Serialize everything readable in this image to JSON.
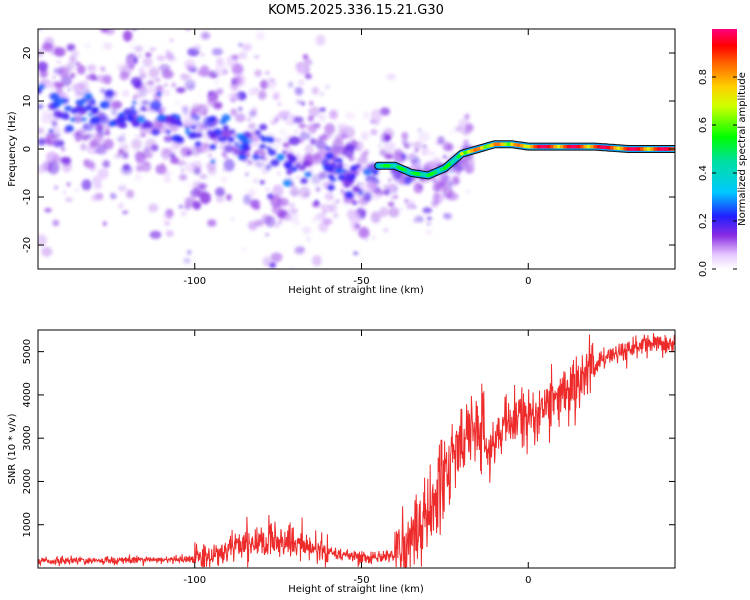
{
  "title": "KOM5.2025.336.15.21.G30",
  "chart_data": [
    {
      "type": "heatmap",
      "name": "spectrogram",
      "xlabel": "Height of straight line (km)",
      "ylabel": "Frequency (Hz)",
      "xlim": [
        -147,
        44
      ],
      "ylim": [
        -25,
        25
      ],
      "xticks": [
        -100,
        -50,
        0
      ],
      "yticks": [
        20,
        10,
        0,
        -10,
        -20
      ],
      "colorbar": {
        "label": "Normalized spectral amplitude",
        "range": [
          0,
          1
        ],
        "ticks": [
          0.0,
          0.2,
          0.4,
          0.6,
          0.8
        ],
        "tick_labels": [
          "0.0",
          "0.2",
          "0.4",
          "0.6",
          "0.8"
        ]
      },
      "ridge": [
        [
          -145,
          9
        ],
        [
          -130,
          8
        ],
        [
          -115,
          6
        ],
        [
          -100,
          5
        ],
        [
          -90,
          3
        ],
        [
          -80,
          0
        ],
        [
          -70,
          -3
        ],
        [
          -60,
          -5
        ],
        [
          -50,
          -6
        ],
        [
          -45,
          -3.5
        ],
        [
          -40,
          -3.5
        ],
        [
          -35,
          -5
        ],
        [
          -30,
          -5.5
        ],
        [
          -25,
          -4
        ],
        [
          -20,
          -1
        ],
        [
          -15,
          0
        ],
        [
          -10,
          1
        ],
        [
          -5,
          1
        ],
        [
          0,
          0.5
        ],
        [
          10,
          0.5
        ],
        [
          20,
          0.5
        ],
        [
          30,
          0
        ],
        [
          44,
          0
        ]
      ]
    },
    {
      "type": "line",
      "name": "snr",
      "xlabel": "Height of straight line (km)",
      "ylabel": "SNR (10 * v/v)",
      "xlim": [
        -147,
        44
      ],
      "ylim": [
        0,
        5500
      ],
      "xticks": [
        -100,
        -50,
        0
      ],
      "yticks": [
        1000,
        2000,
        3000,
        4000,
        5000
      ],
      "color": "#ee2b2b",
      "series": [
        {
          "name": "SNR",
          "x": [
            -147,
            -140,
            -130,
            -120,
            -110,
            -100,
            -95,
            -90,
            -85,
            -80,
            -75,
            -70,
            -65,
            -60,
            -55,
            -50,
            -45,
            -40,
            -38,
            -36,
            -34,
            -32,
            -30,
            -28,
            -26,
            -24,
            -22,
            -20,
            -18,
            -16,
            -14,
            -12,
            -10,
            -8,
            -6,
            -4,
            -2,
            0,
            2,
            4,
            6,
            8,
            10,
            12,
            14,
            16,
            18,
            20,
            22,
            24,
            26,
            28,
            30,
            32,
            34,
            36,
            38,
            40,
            44
          ],
          "y": [
            150,
            160,
            170,
            180,
            190,
            210,
            300,
            450,
            550,
            650,
            620,
            550,
            450,
            380,
            300,
            250,
            250,
            300,
            450,
            600,
            800,
            1000,
            1300,
            1600,
            2000,
            2400,
            2700,
            2900,
            3100,
            3200,
            3100,
            3000,
            3050,
            3150,
            3300,
            3400,
            3500,
            3550,
            3600,
            3700,
            3800,
            3900,
            4000,
            4100,
            4200,
            4400,
            4600,
            4700,
            4800,
            4900,
            4950,
            5000,
            5050,
            5050,
            5100,
            5150,
            5150,
            5150,
            5200
          ]
        }
      ]
    }
  ]
}
